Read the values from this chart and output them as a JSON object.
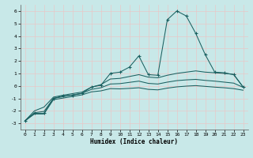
{
  "xlabel": "Humidex (Indice chaleur)",
  "xlim": [
    -0.5,
    23.5
  ],
  "ylim": [
    -3.5,
    6.5
  ],
  "yticks": [
    -3,
    -2,
    -1,
    0,
    1,
    2,
    3,
    4,
    5,
    6
  ],
  "xticks": [
    0,
    1,
    2,
    3,
    4,
    5,
    6,
    7,
    8,
    9,
    10,
    11,
    12,
    13,
    14,
    15,
    16,
    17,
    18,
    19,
    20,
    21,
    22,
    23
  ],
  "bg_color": "#c8e8e8",
  "grid_color": "#e8c8c8",
  "line_color": "#1a6060",
  "x_main": [
    0,
    1,
    2,
    3,
    4,
    5,
    6,
    7,
    8,
    9,
    10,
    11,
    12,
    13,
    14,
    15,
    16,
    17,
    18,
    19,
    20,
    21,
    22,
    23
  ],
  "y_main": [
    -2.8,
    -2.2,
    -2.2,
    -1.0,
    -0.8,
    -0.75,
    -0.6,
    -0.1,
    0.05,
    1.0,
    1.1,
    1.5,
    2.4,
    0.9,
    0.85,
    5.3,
    6.0,
    5.6,
    4.2,
    2.5,
    1.1,
    1.05,
    0.9,
    -0.1
  ],
  "y_upper": [
    -2.8,
    -2.0,
    -1.7,
    -0.9,
    -0.75,
    -0.62,
    -0.5,
    -0.1,
    0.1,
    0.55,
    0.6,
    0.75,
    0.9,
    0.7,
    0.65,
    0.85,
    1.0,
    1.1,
    1.2,
    1.1,
    1.05,
    1.0,
    0.92,
    -0.1
  ],
  "y_mid": [
    -2.8,
    -2.15,
    -2.05,
    -1.0,
    -0.87,
    -0.72,
    -0.6,
    -0.28,
    -0.15,
    0.15,
    0.18,
    0.28,
    0.38,
    0.2,
    0.15,
    0.3,
    0.42,
    0.48,
    0.52,
    0.44,
    0.38,
    0.3,
    0.22,
    -0.12
  ],
  "y_lower": [
    -2.8,
    -2.25,
    -2.25,
    -1.1,
    -0.98,
    -0.85,
    -0.72,
    -0.48,
    -0.4,
    -0.22,
    -0.24,
    -0.2,
    -0.15,
    -0.28,
    -0.32,
    -0.18,
    -0.08,
    -0.02,
    0.02,
    -0.04,
    -0.1,
    -0.15,
    -0.22,
    -0.35
  ]
}
